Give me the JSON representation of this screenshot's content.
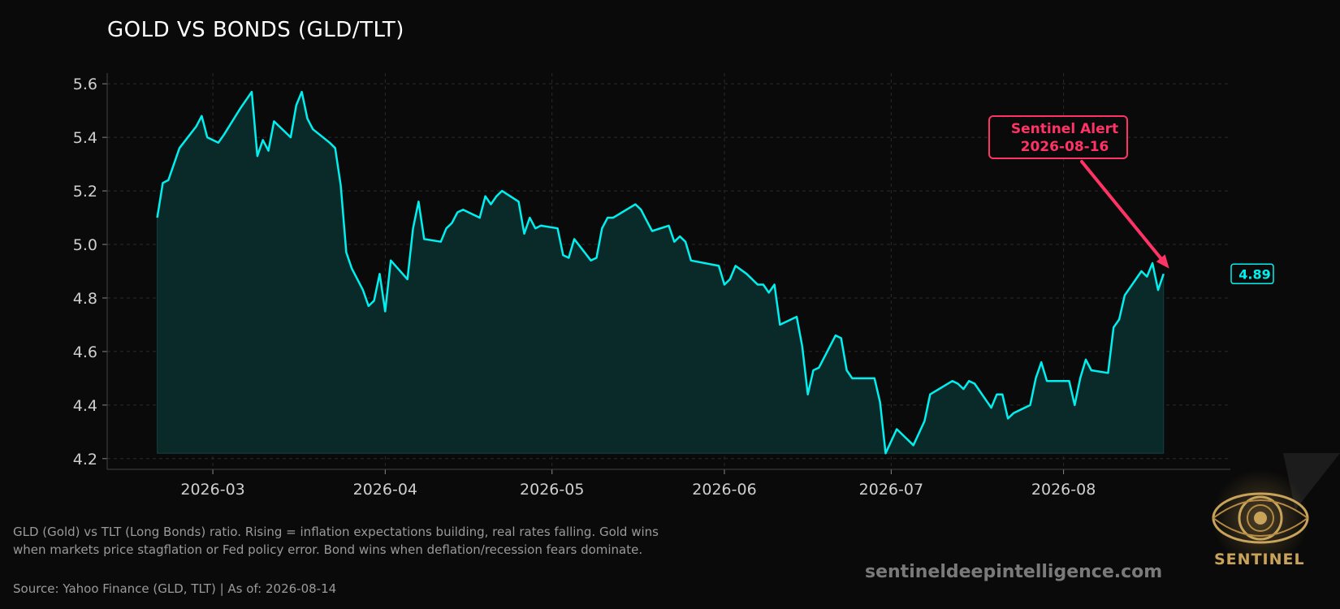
{
  "page": {
    "title": "GOLD VS BONDS (GLD/TLT)",
    "caption": "GLD (Gold) vs TLT (Long Bonds) ratio. Rising = inflation expectations building, real rates falling. Gold wins when markets price stagflation or Fed policy error. Bond wins when deflation/recession fears dominate.",
    "source": "Source: Yahoo Finance (GLD, TLT) | As of: 2026-08-14",
    "watermark": "sentineldeepintelligence.com",
    "logo_text": "SENTINEL",
    "logo_icon": "eye-icon"
  },
  "colors": {
    "background": "#0a0a0a",
    "line": "#00f0f0",
    "fill": "#0a2a2a",
    "alert": "#ff3366",
    "axis_text": "#cfcfcf",
    "grid": "#2a2a2a"
  },
  "chart_data": {
    "type": "line",
    "title": "GOLD VS BONDS (GLD/TLT)",
    "xlabel": "",
    "ylabel": "",
    "ylim": [
      4.16,
      5.64
    ],
    "xlim": [
      "2026-02-10",
      "2026-08-31"
    ],
    "yticks": [
      4.2,
      4.4,
      4.6,
      4.8,
      5.0,
      5.2,
      5.4,
      5.6
    ],
    "ytick_labels": [
      "4.2",
      "4.4",
      "4.6",
      "4.8",
      "5.0",
      "5.2",
      "5.4",
      "5.6"
    ],
    "xticks": [
      "2026-03-01",
      "2026-04-01",
      "2026-05-01",
      "2026-06-01",
      "2026-07-01",
      "2026-08-01"
    ],
    "xtick_labels": [
      "2026-03",
      "2026-04",
      "2026-05",
      "2026-06",
      "2026-07",
      "2026-08"
    ],
    "grid": true,
    "fill_baseline": 4.22,
    "series": [
      {
        "name": "GLD/TLT",
        "points": [
          [
            "2026-02-19",
            5.1
          ],
          [
            "2026-02-20",
            5.23
          ],
          [
            "2026-02-21",
            5.24
          ],
          [
            "2026-02-23",
            5.36
          ],
          [
            "2026-02-26",
            5.44
          ],
          [
            "2026-02-27",
            5.48
          ],
          [
            "2026-02-28",
            5.4
          ],
          [
            "2026-03-02",
            5.38
          ],
          [
            "2026-03-03",
            5.41
          ],
          [
            "2026-03-06",
            5.51
          ],
          [
            "2026-03-08",
            5.57
          ],
          [
            "2026-03-09",
            5.33
          ],
          [
            "2026-03-10",
            5.39
          ],
          [
            "2026-03-11",
            5.35
          ],
          [
            "2026-03-12",
            5.46
          ],
          [
            "2026-03-15",
            5.4
          ],
          [
            "2026-03-16",
            5.52
          ],
          [
            "2026-03-17",
            5.57
          ],
          [
            "2026-03-18",
            5.47
          ],
          [
            "2026-03-19",
            5.43
          ],
          [
            "2026-03-22",
            5.38
          ],
          [
            "2026-03-23",
            5.36
          ],
          [
            "2026-03-24",
            5.22
          ],
          [
            "2026-03-25",
            4.97
          ],
          [
            "2026-03-26",
            4.91
          ],
          [
            "2026-03-28",
            4.83
          ],
          [
            "2026-03-29",
            4.77
          ],
          [
            "2026-03-30",
            4.79
          ],
          [
            "2026-03-31",
            4.89
          ],
          [
            "2026-04-01",
            4.75
          ],
          [
            "2026-04-02",
            4.94
          ],
          [
            "2026-04-05",
            4.87
          ],
          [
            "2026-04-06",
            5.06
          ],
          [
            "2026-04-07",
            5.16
          ],
          [
            "2026-04-08",
            5.02
          ],
          [
            "2026-04-11",
            5.01
          ],
          [
            "2026-04-12",
            5.06
          ],
          [
            "2026-04-13",
            5.08
          ],
          [
            "2026-04-14",
            5.12
          ],
          [
            "2026-04-15",
            5.13
          ],
          [
            "2026-04-18",
            5.1
          ],
          [
            "2026-04-19",
            5.18
          ],
          [
            "2026-04-20",
            5.15
          ],
          [
            "2026-04-21",
            5.18
          ],
          [
            "2026-04-22",
            5.2
          ],
          [
            "2026-04-25",
            5.16
          ],
          [
            "2026-04-26",
            5.04
          ],
          [
            "2026-04-27",
            5.1
          ],
          [
            "2026-04-28",
            5.06
          ],
          [
            "2026-04-29",
            5.07
          ],
          [
            "2026-05-02",
            5.06
          ],
          [
            "2026-05-03",
            4.96
          ],
          [
            "2026-05-04",
            4.95
          ],
          [
            "2026-05-05",
            5.02
          ],
          [
            "2026-05-08",
            4.94
          ],
          [
            "2026-05-09",
            4.95
          ],
          [
            "2026-05-10",
            5.06
          ],
          [
            "2026-05-11",
            5.1
          ],
          [
            "2026-05-12",
            5.1
          ],
          [
            "2026-05-16",
            5.15
          ],
          [
            "2026-05-17",
            5.13
          ],
          [
            "2026-05-18",
            5.09
          ],
          [
            "2026-05-19",
            5.05
          ],
          [
            "2026-05-22",
            5.07
          ],
          [
            "2026-05-23",
            5.01
          ],
          [
            "2026-05-24",
            5.03
          ],
          [
            "2026-05-25",
            5.01
          ],
          [
            "2026-05-26",
            4.94
          ],
          [
            "2026-05-31",
            4.92
          ],
          [
            "2026-06-01",
            4.85
          ],
          [
            "2026-06-02",
            4.87
          ],
          [
            "2026-06-03",
            4.92
          ],
          [
            "2026-06-05",
            4.89
          ],
          [
            "2026-06-07",
            4.85
          ],
          [
            "2026-06-08",
            4.85
          ],
          [
            "2026-06-09",
            4.82
          ],
          [
            "2026-06-10",
            4.85
          ],
          [
            "2026-06-11",
            4.7
          ],
          [
            "2026-06-14",
            4.73
          ],
          [
            "2026-06-15",
            4.62
          ],
          [
            "2026-06-16",
            4.44
          ],
          [
            "2026-06-17",
            4.53
          ],
          [
            "2026-06-18",
            4.54
          ],
          [
            "2026-06-21",
            4.66
          ],
          [
            "2026-06-22",
            4.65
          ],
          [
            "2026-06-23",
            4.53
          ],
          [
            "2026-06-24",
            4.5
          ],
          [
            "2026-06-28",
            4.5
          ],
          [
            "2026-06-29",
            4.41
          ],
          [
            "2026-06-30",
            4.22
          ],
          [
            "2026-07-02",
            4.31
          ],
          [
            "2026-07-05",
            4.25
          ],
          [
            "2026-07-07",
            4.34
          ],
          [
            "2026-07-08",
            4.44
          ],
          [
            "2026-07-12",
            4.49
          ],
          [
            "2026-07-13",
            4.48
          ],
          [
            "2026-07-14",
            4.46
          ],
          [
            "2026-07-15",
            4.49
          ],
          [
            "2026-07-16",
            4.48
          ],
          [
            "2026-07-19",
            4.39
          ],
          [
            "2026-07-20",
            4.44
          ],
          [
            "2026-07-21",
            4.44
          ],
          [
            "2026-07-22",
            4.35
          ],
          [
            "2026-07-23",
            4.37
          ],
          [
            "2026-07-26",
            4.4
          ],
          [
            "2026-07-27",
            4.5
          ],
          [
            "2026-07-28",
            4.56
          ],
          [
            "2026-07-29",
            4.49
          ],
          [
            "2026-08-02",
            4.49
          ],
          [
            "2026-08-03",
            4.4
          ],
          [
            "2026-08-04",
            4.5
          ],
          [
            "2026-08-05",
            4.57
          ],
          [
            "2026-08-06",
            4.53
          ],
          [
            "2026-08-09",
            4.52
          ],
          [
            "2026-08-10",
            4.69
          ],
          [
            "2026-08-11",
            4.72
          ],
          [
            "2026-08-12",
            4.81
          ],
          [
            "2026-08-15",
            4.9
          ],
          [
            "2026-08-16",
            4.88
          ],
          [
            "2026-08-17",
            4.93
          ],
          [
            "2026-08-18",
            4.83
          ],
          [
            "2026-08-19",
            4.89
          ]
        ]
      }
    ],
    "last_value_label": "4.89",
    "annotation": {
      "text_line1": "Sentinel Alert",
      "text_line2": "2026-08-16",
      "target": [
        "2026-08-20",
        4.91
      ]
    }
  }
}
